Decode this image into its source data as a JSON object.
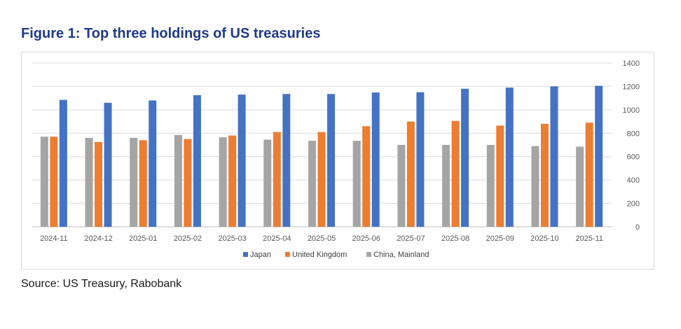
{
  "figure_title": "Figure 1: Top three holdings of US treasuries",
  "source": "Source: US Treasury, Rabobank",
  "chart_data": {
    "type": "bar",
    "title": "",
    "xlabel": "",
    "ylabel": "",
    "ylim": [
      0,
      1400
    ],
    "yticks": [
      0,
      200,
      400,
      600,
      800,
      1000,
      1200,
      1400
    ],
    "y_axis_position": "right",
    "grid": true,
    "legend_position": "bottom",
    "categories": [
      "2024-11",
      "2024-12",
      "2025-01",
      "2025-02",
      "2025-03",
      "2025-04",
      "2025-05",
      "2025-06",
      "2025-07",
      "2025-08",
      "2025-09",
      "2025-10",
      "2025-11"
    ],
    "series": [
      {
        "name": "China, Mainland",
        "color": "#a5a5a5",
        "values": [
          770,
          760,
          760,
          785,
          765,
          745,
          735,
          735,
          700,
          700,
          700,
          690,
          685
        ]
      },
      {
        "name": "United Kingdom",
        "color": "#ed7d31",
        "values": [
          770,
          725,
          740,
          750,
          780,
          810,
          810,
          860,
          900,
          905,
          865,
          880,
          890
        ]
      },
      {
        "name": "Japan",
        "color": "#4472c4",
        "values": [
          1085,
          1060,
          1080,
          1125,
          1130,
          1135,
          1135,
          1148,
          1150,
          1180,
          1190,
          1200,
          1205
        ]
      }
    ],
    "legend_order": [
      "Japan",
      "United Kingdom",
      "China, Mainland"
    ]
  }
}
